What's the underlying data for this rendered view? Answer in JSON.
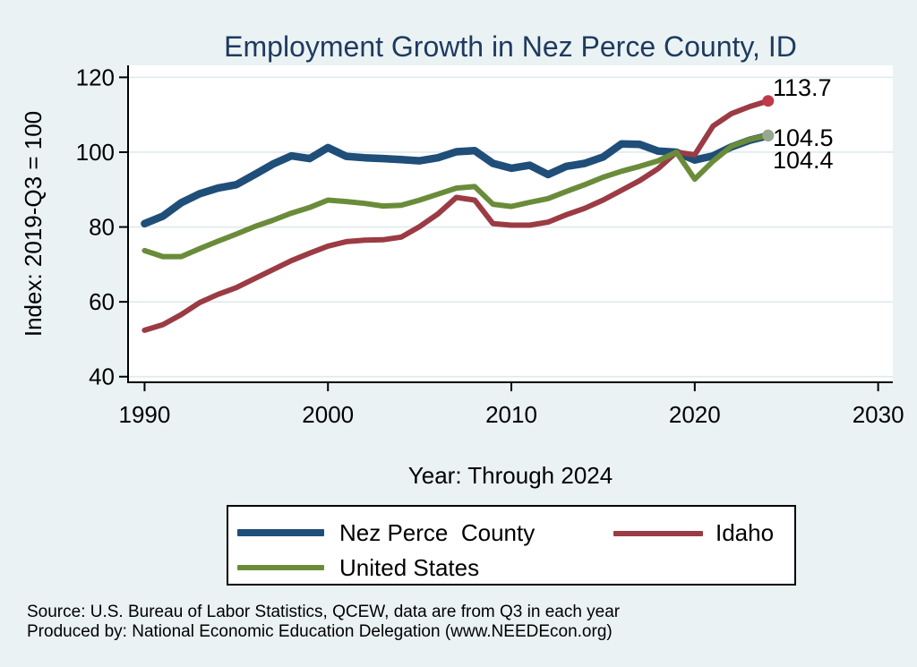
{
  "title": "Employment Growth in Nez Perce County, ID",
  "chart_data": {
    "type": "line",
    "title": "Employment Growth in Nez Perce County, ID",
    "xlabel": "Year: Through 2024",
    "ylabel": "Index: 2019-Q3 = 100",
    "x_ticks": [
      1990,
      2000,
      2010,
      2020,
      2030
    ],
    "y_ticks": [
      40,
      60,
      80,
      100,
      120
    ],
    "x_range": [
      1989.1,
      2030.8
    ],
    "y_range": [
      38.5,
      123.2
    ],
    "grid": true,
    "legend_position": "bottom",
    "years": [
      1990,
      1991,
      1992,
      1993,
      1994,
      1995,
      1996,
      1997,
      1998,
      1999,
      2000,
      2001,
      2002,
      2003,
      2004,
      2005,
      2006,
      2007,
      2008,
      2009,
      2010,
      2011,
      2012,
      2013,
      2014,
      2015,
      2016,
      2017,
      2018,
      2019,
      2020,
      2021,
      2022,
      2023,
      2024
    ],
    "series": [
      {
        "name": "Nez Perce  County",
        "color": "#1f4e79",
        "line_width": 8.5,
        "end_marker_color": "#84a0b2",
        "end_value_label": "104.4",
        "values": [
          80.9,
          82.9,
          86.5,
          88.9,
          90.4,
          91.3,
          94.0,
          96.8,
          99.0,
          98.3,
          101.2,
          98.9,
          98.5,
          98.3,
          98.0,
          97.7,
          98.5,
          100.1,
          100.4,
          97.0,
          95.7,
          96.5,
          94.0,
          96.2,
          97.0,
          98.7,
          102.2,
          102.1,
          100.3,
          100.0,
          97.9,
          99.0,
          101.4,
          103.2,
          104.4
        ]
      },
      {
        "name": "Idaho",
        "color": "#9b3b44",
        "line_width": 6,
        "end_marker_color": "#c2394b",
        "end_value_label": "113.7",
        "values": [
          52.4,
          53.9,
          56.6,
          59.8,
          62.0,
          63.8,
          66.2,
          68.6,
          71.0,
          73.0,
          74.9,
          76.1,
          76.5,
          76.6,
          77.3,
          80.1,
          83.5,
          87.9,
          87.2,
          80.9,
          80.5,
          80.5,
          81.3,
          83.3,
          85.0,
          87.2,
          89.8,
          92.4,
          95.6,
          100.0,
          99.3,
          107.0,
          110.3,
          112.2,
          113.7
        ]
      },
      {
        "name": "United States",
        "color": "#6a8c3a",
        "line_width": 6,
        "end_marker_color": "#97a88e",
        "end_value_label": "104.5",
        "values": [
          73.7,
          72.1,
          72.1,
          74.2,
          76.2,
          78.1,
          80.1,
          81.8,
          83.7,
          85.2,
          87.2,
          86.8,
          86.3,
          85.6,
          85.8,
          87.2,
          88.8,
          90.4,
          90.8,
          86.1,
          85.5,
          86.6,
          87.6,
          89.5,
          91.3,
          93.3,
          94.9,
          96.2,
          97.7,
          100.0,
          92.8,
          97.6,
          101.6,
          103.4,
          104.5
        ]
      }
    ],
    "annotations": [
      {
        "text": "113.7",
        "x": 863,
        "y": 107
      },
      {
        "text": "104.5",
        "x": 863,
        "y": 163
      },
      {
        "text": "104.4",
        "x": 863,
        "y": 188
      }
    ]
  },
  "legend": {
    "items": [
      {
        "label": "Nez Perce  County",
        "series": 0
      },
      {
        "label": "Idaho",
        "series": 1
      },
      {
        "label": "United States",
        "series": 2
      }
    ]
  },
  "source": {
    "line1": "Source: U.S. Bureau of Labor Statistics, QCEW, data are from Q3 in each year",
    "line2": "Produced by: National Economic Education Delegation (www.NEEDEcon.org)"
  },
  "colors": {
    "background": "#eaf2f3",
    "plot_background": "#ffffff",
    "gridline": "#dfe9ec",
    "axis": "#000000",
    "title": "#1e3a5f",
    "text": "#000000"
  }
}
